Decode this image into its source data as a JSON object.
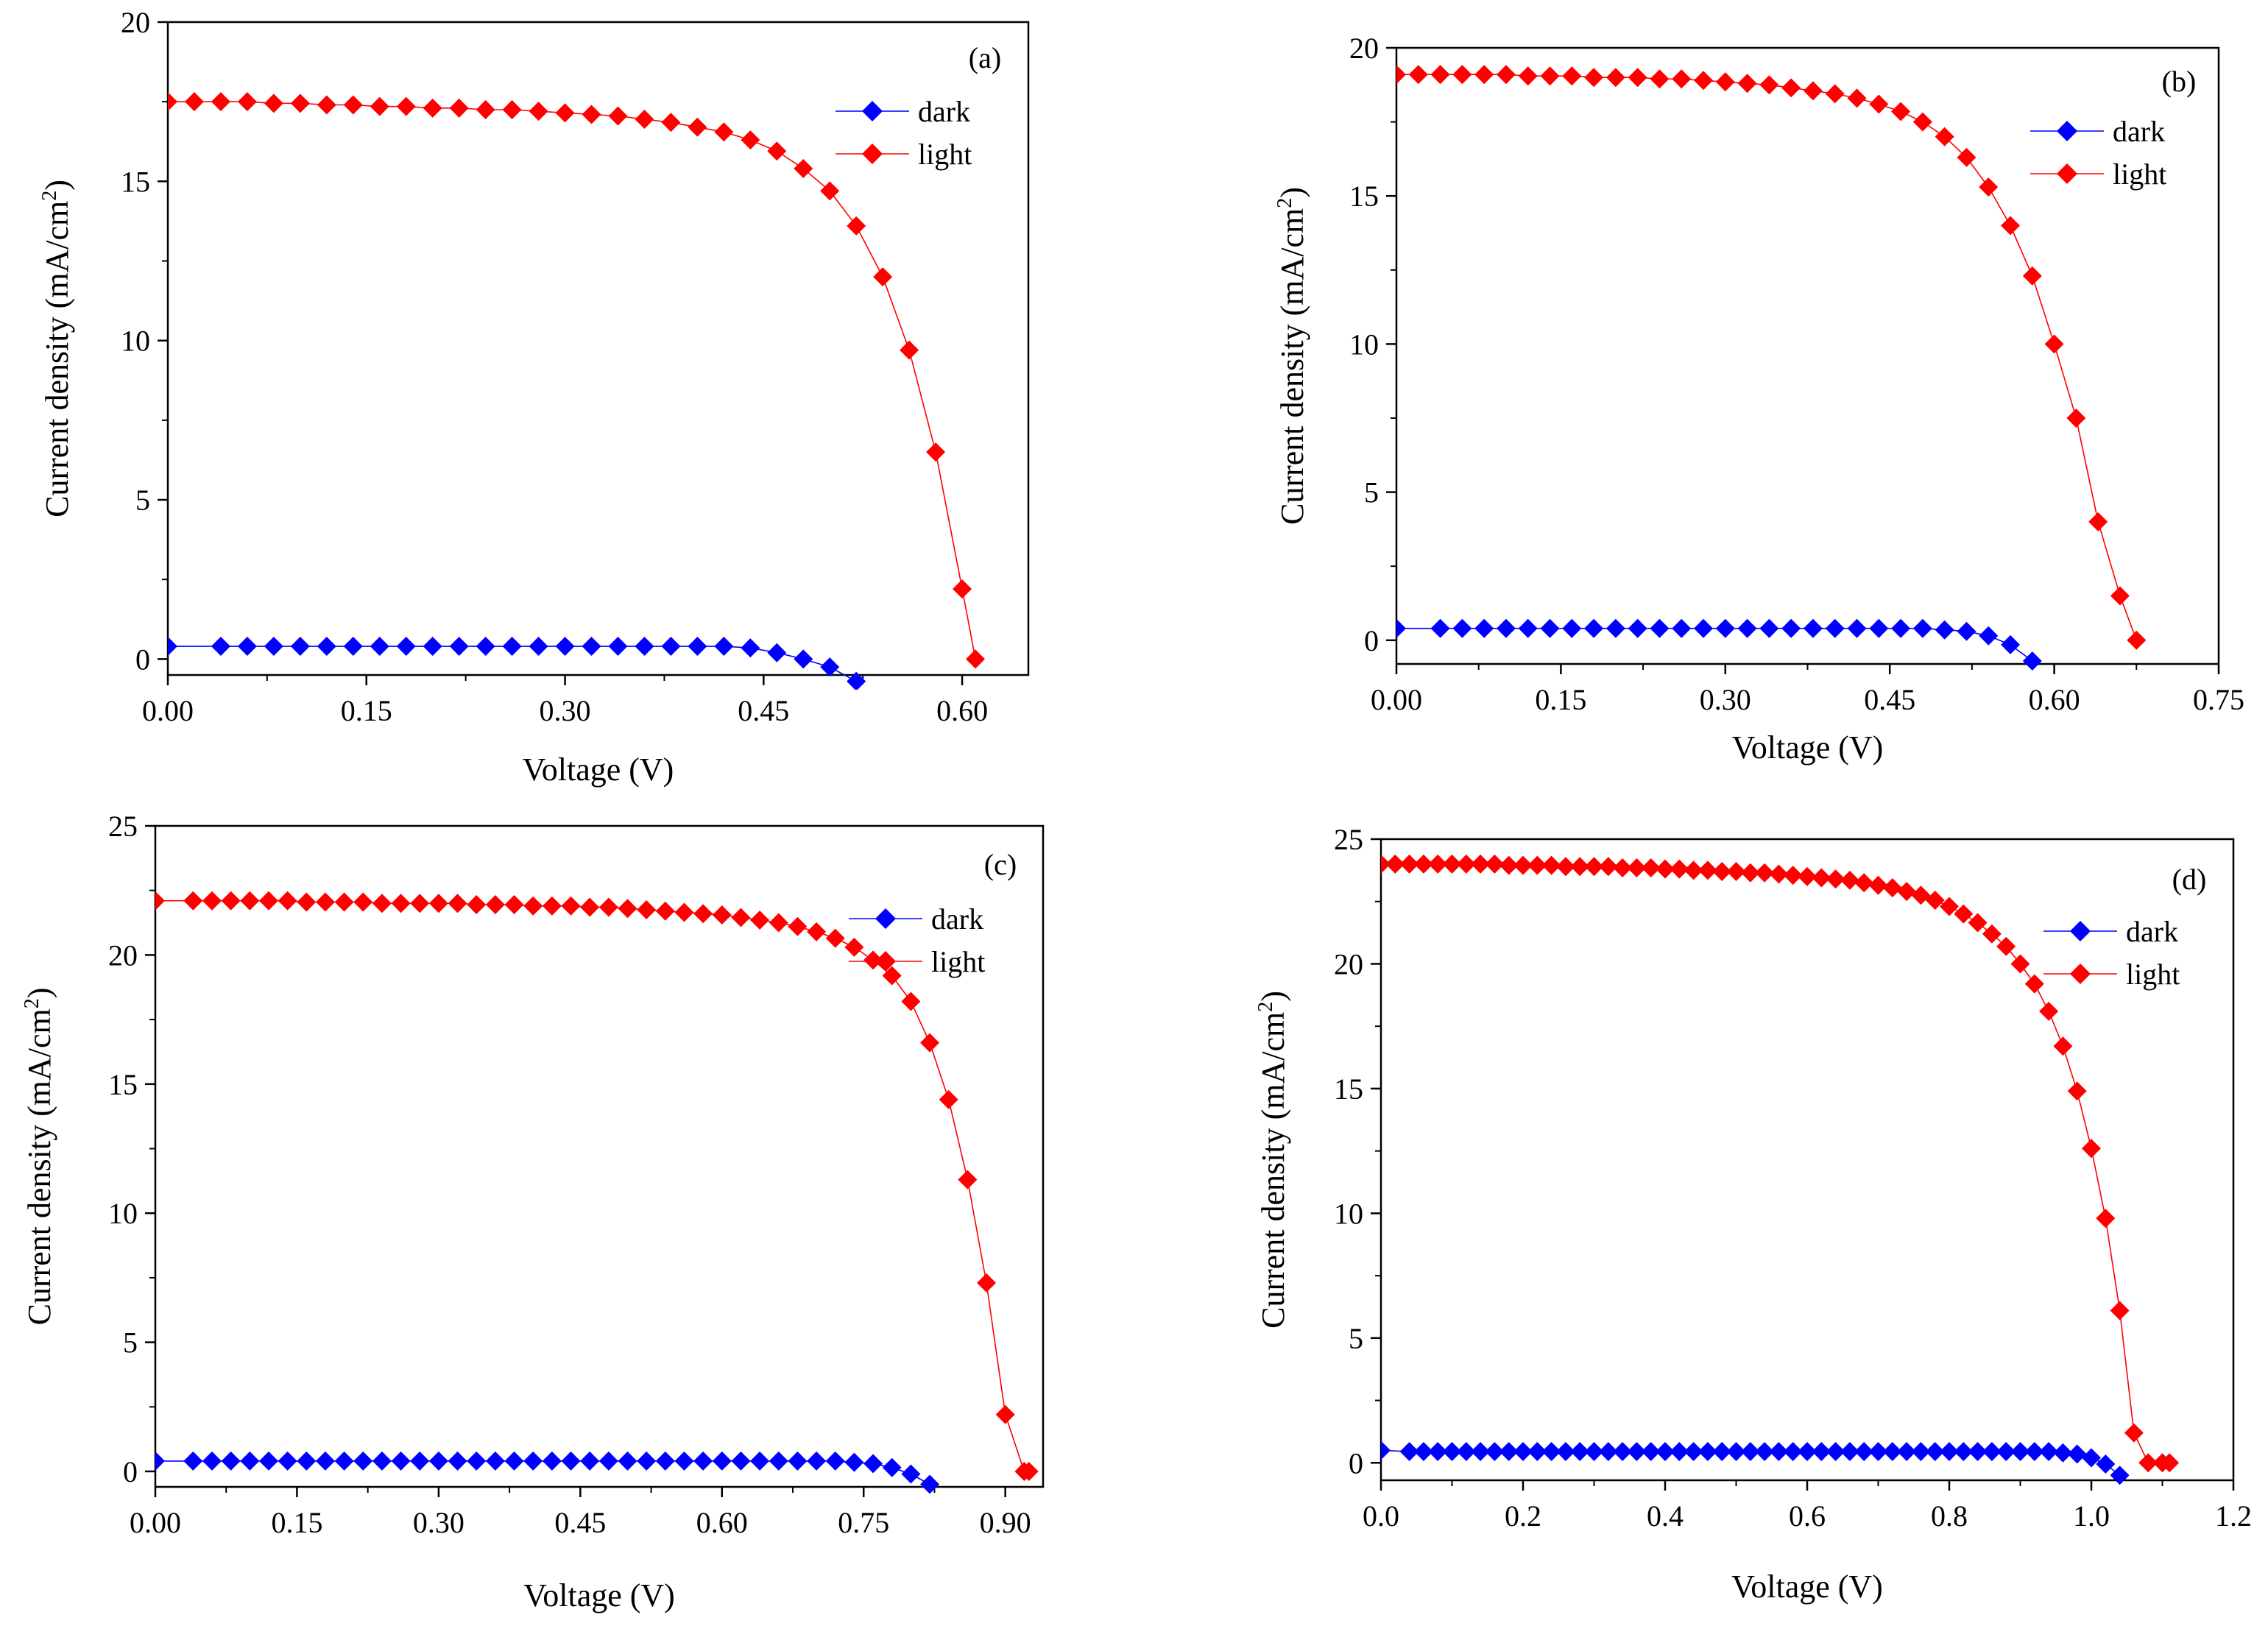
{
  "colors": {
    "dark": "#0000ff",
    "light": "#ff0000",
    "axis": "#000000"
  },
  "chart_data": [
    {
      "type": "line",
      "panel": "(a)",
      "xlabel": "Voltage (V)",
      "ylabel": "Current density (mA/cm²)",
      "ylabel_main": "Current density (mA/cm",
      "ylabel_sup": "2",
      "ylabel_close": ")",
      "xlim": [
        0,
        0.65
      ],
      "ylim": [
        -0.5,
        20
      ],
      "xticks": [
        0,
        0.15,
        0.3,
        0.45,
        0.6
      ],
      "xtick_labels": [
        "0.00",
        "0.15",
        "0.30",
        "0.45",
        "0.60"
      ],
      "yticks": [
        0,
        5,
        10,
        15,
        20
      ],
      "ytick_labels": [
        "0",
        "5",
        "10",
        "15",
        "20"
      ],
      "legend": [
        "dark",
        "light"
      ],
      "series": [
        {
          "name": "dark",
          "x": [
            0,
            0.04,
            0.06,
            0.08,
            0.1,
            0.12,
            0.14,
            0.16,
            0.18,
            0.2,
            0.22,
            0.24,
            0.26,
            0.28,
            0.3,
            0.32,
            0.34,
            0.36,
            0.38,
            0.4,
            0.42,
            0.44,
            0.46,
            0.48,
            0.5,
            0.52
          ],
          "y": [
            0.4,
            0.4,
            0.4,
            0.4,
            0.4,
            0.4,
            0.4,
            0.4,
            0.4,
            0.4,
            0.4,
            0.4,
            0.4,
            0.4,
            0.4,
            0.4,
            0.4,
            0.4,
            0.4,
            0.4,
            0.4,
            0.35,
            0.2,
            0,
            -0.25,
            -0.7
          ]
        },
        {
          "name": "light",
          "x": [
            0,
            0.02,
            0.04,
            0.06,
            0.08,
            0.1,
            0.12,
            0.14,
            0.16,
            0.18,
            0.2,
            0.22,
            0.24,
            0.26,
            0.28,
            0.3,
            0.32,
            0.34,
            0.36,
            0.38,
            0.4,
            0.42,
            0.44,
            0.46,
            0.48,
            0.5,
            0.52,
            0.54,
            0.56,
            0.58,
            0.6,
            0.61
          ],
          "y": [
            17.5,
            17.5,
            17.5,
            17.5,
            17.45,
            17.45,
            17.4,
            17.4,
            17.35,
            17.35,
            17.3,
            17.3,
            17.25,
            17.25,
            17.2,
            17.15,
            17.1,
            17.05,
            16.95,
            16.85,
            16.7,
            16.55,
            16.3,
            15.95,
            15.4,
            14.7,
            13.6,
            12.0,
            9.7,
            6.5,
            2.2,
            0
          ]
        }
      ]
    },
    {
      "type": "line",
      "panel": "(b)",
      "xlabel": "Voltage (V)",
      "ylabel": "Current density (mA/cm²)",
      "ylabel_main": "Current density (mA/cm",
      "ylabel_sup": "2",
      "ylabel_close": ")",
      "xlim": [
        0,
        0.75
      ],
      "ylim": [
        -0.8,
        20
      ],
      "xticks": [
        0,
        0.15,
        0.3,
        0.45,
        0.6,
        0.75
      ],
      "xtick_labels": [
        "0.00",
        "0.15",
        "0.30",
        "0.45",
        "0.60",
        "0.75"
      ],
      "yticks": [
        0,
        5,
        10,
        15,
        20
      ],
      "ytick_labels": [
        "0",
        "5",
        "10",
        "15",
        "20"
      ],
      "legend": [
        "dark",
        "light"
      ],
      "series": [
        {
          "name": "dark",
          "x": [
            0,
            0.04,
            0.06,
            0.08,
            0.1,
            0.12,
            0.14,
            0.16,
            0.18,
            0.2,
            0.22,
            0.24,
            0.26,
            0.28,
            0.3,
            0.32,
            0.34,
            0.36,
            0.38,
            0.4,
            0.42,
            0.44,
            0.46,
            0.48,
            0.5,
            0.52,
            0.54,
            0.56,
            0.58
          ],
          "y": [
            0.4,
            0.4,
            0.4,
            0.4,
            0.4,
            0.4,
            0.4,
            0.4,
            0.4,
            0.4,
            0.4,
            0.4,
            0.4,
            0.4,
            0.4,
            0.4,
            0.4,
            0.4,
            0.4,
            0.4,
            0.4,
            0.4,
            0.4,
            0.4,
            0.35,
            0.3,
            0.15,
            -0.15,
            -0.7
          ]
        },
        {
          "name": "light",
          "x": [
            0,
            0.02,
            0.04,
            0.06,
            0.08,
            0.1,
            0.12,
            0.14,
            0.16,
            0.18,
            0.2,
            0.22,
            0.24,
            0.26,
            0.28,
            0.3,
            0.32,
            0.34,
            0.36,
            0.38,
            0.4,
            0.42,
            0.44,
            0.46,
            0.48,
            0.5,
            0.52,
            0.54,
            0.56,
            0.58,
            0.6,
            0.62,
            0.64,
            0.66,
            0.675
          ],
          "y": [
            19.1,
            19.1,
            19.1,
            19.1,
            19.1,
            19.1,
            19.05,
            19.05,
            19.05,
            19.0,
            19.0,
            19.0,
            18.95,
            18.95,
            18.9,
            18.85,
            18.8,
            18.75,
            18.65,
            18.55,
            18.45,
            18.3,
            18.1,
            17.85,
            17.5,
            17.0,
            16.3,
            15.3,
            14.0,
            12.3,
            10.0,
            7.5,
            4.0,
            1.5,
            0
          ]
        }
      ]
    },
    {
      "type": "line",
      "panel": "(c)",
      "xlabel": "Voltage (V)",
      "ylabel": "Current density (mA/cm²)",
      "ylabel_main": "Current density (mA/cm",
      "ylabel_sup": "2",
      "ylabel_close": ")",
      "xlim": [
        0,
        0.94
      ],
      "ylim": [
        -0.6,
        25
      ],
      "xticks": [
        0,
        0.15,
        0.3,
        0.45,
        0.6,
        0.75,
        0.9
      ],
      "xtick_labels": [
        "0.00",
        "0.15",
        "0.30",
        "0.45",
        "0.60",
        "0.75",
        "0.90"
      ],
      "yticks": [
        0,
        5,
        10,
        15,
        20,
        25
      ],
      "ytick_labels": [
        "0",
        "5",
        "10",
        "15",
        "20",
        "25"
      ],
      "legend": [
        "dark",
        "light"
      ],
      "series": [
        {
          "name": "dark",
          "x": [
            0,
            0.04,
            0.06,
            0.08,
            0.1,
            0.12,
            0.14,
            0.16,
            0.18,
            0.2,
            0.22,
            0.24,
            0.26,
            0.28,
            0.3,
            0.32,
            0.34,
            0.36,
            0.38,
            0.4,
            0.42,
            0.44,
            0.46,
            0.48,
            0.5,
            0.52,
            0.54,
            0.56,
            0.58,
            0.6,
            0.62,
            0.64,
            0.66,
            0.68,
            0.7,
            0.72,
            0.74,
            0.76,
            0.78,
            0.8,
            0.82
          ],
          "y": [
            0.4,
            0.4,
            0.4,
            0.4,
            0.4,
            0.4,
            0.4,
            0.4,
            0.4,
            0.4,
            0.4,
            0.4,
            0.4,
            0.4,
            0.4,
            0.4,
            0.4,
            0.4,
            0.4,
            0.4,
            0.4,
            0.4,
            0.4,
            0.4,
            0.4,
            0.4,
            0.4,
            0.4,
            0.4,
            0.4,
            0.4,
            0.4,
            0.4,
            0.4,
            0.4,
            0.4,
            0.35,
            0.3,
            0.15,
            -0.1,
            -0.5
          ]
        },
        {
          "name": "light",
          "x": [
            0,
            0.04,
            0.06,
            0.08,
            0.1,
            0.12,
            0.14,
            0.16,
            0.18,
            0.2,
            0.22,
            0.24,
            0.26,
            0.28,
            0.3,
            0.32,
            0.34,
            0.36,
            0.38,
            0.4,
            0.42,
            0.44,
            0.46,
            0.48,
            0.5,
            0.52,
            0.54,
            0.56,
            0.58,
            0.6,
            0.62,
            0.64,
            0.66,
            0.68,
            0.7,
            0.72,
            0.74,
            0.76,
            0.78,
            0.8,
            0.82,
            0.84,
            0.86,
            0.88,
            0.9,
            0.92,
            0.925
          ],
          "y": [
            22.1,
            22.1,
            22.1,
            22.1,
            22.1,
            22.1,
            22.1,
            22.05,
            22.05,
            22.05,
            22.05,
            22.0,
            22.0,
            22.0,
            22.0,
            22.0,
            21.95,
            21.95,
            21.95,
            21.9,
            21.9,
            21.9,
            21.85,
            21.85,
            21.8,
            21.75,
            21.7,
            21.65,
            21.6,
            21.55,
            21.45,
            21.35,
            21.25,
            21.1,
            20.9,
            20.65,
            20.3,
            19.8,
            19.2,
            18.2,
            16.6,
            14.4,
            11.3,
            7.3,
            2.2,
            0,
            0
          ]
        }
      ]
    },
    {
      "type": "line",
      "panel": "(d)",
      "xlabel": "Voltage (V)",
      "ylabel": "Current density (mA/cm²)",
      "ylabel_main": "Current density (mA/cm",
      "ylabel_sup": "2",
      "ylabel_close": ")",
      "xlim": [
        0,
        1.2
      ],
      "ylim": [
        -0.7,
        25
      ],
      "xticks": [
        0,
        0.2,
        0.4,
        0.6,
        0.8,
        1.0,
        1.2
      ],
      "xtick_labels": [
        "0.0",
        "0.2",
        "0.4",
        "0.6",
        "0.8",
        "1.0",
        "1.2"
      ],
      "yticks": [
        0,
        5,
        10,
        15,
        20,
        25
      ],
      "ytick_labels": [
        "0",
        "5",
        "10",
        "15",
        "20",
        "25"
      ],
      "legend": [
        "dark",
        "light"
      ],
      "series": [
        {
          "name": "dark",
          "x": [
            0,
            0.04,
            0.06,
            0.08,
            0.1,
            0.12,
            0.14,
            0.16,
            0.18,
            0.2,
            0.22,
            0.24,
            0.26,
            0.28,
            0.3,
            0.32,
            0.34,
            0.36,
            0.38,
            0.4,
            0.42,
            0.44,
            0.46,
            0.48,
            0.5,
            0.52,
            0.54,
            0.56,
            0.58,
            0.6,
            0.62,
            0.64,
            0.66,
            0.68,
            0.7,
            0.72,
            0.74,
            0.76,
            0.78,
            0.8,
            0.82,
            0.84,
            0.86,
            0.88,
            0.9,
            0.92,
            0.94,
            0.96,
            0.98,
            1.0,
            1.02,
            1.04
          ],
          "y": [
            0.5,
            0.45,
            0.45,
            0.45,
            0.45,
            0.45,
            0.45,
            0.45,
            0.45,
            0.45,
            0.45,
            0.45,
            0.45,
            0.45,
            0.45,
            0.45,
            0.45,
            0.45,
            0.45,
            0.45,
            0.45,
            0.45,
            0.45,
            0.45,
            0.45,
            0.45,
            0.45,
            0.45,
            0.45,
            0.45,
            0.45,
            0.45,
            0.45,
            0.45,
            0.45,
            0.45,
            0.45,
            0.45,
            0.45,
            0.45,
            0.45,
            0.45,
            0.45,
            0.45,
            0.45,
            0.45,
            0.45,
            0.4,
            0.35,
            0.2,
            -0.05,
            -0.5
          ]
        },
        {
          "name": "light",
          "x": [
            0,
            0.02,
            0.04,
            0.06,
            0.08,
            0.1,
            0.12,
            0.14,
            0.16,
            0.18,
            0.2,
            0.22,
            0.24,
            0.26,
            0.28,
            0.3,
            0.32,
            0.34,
            0.36,
            0.38,
            0.4,
            0.42,
            0.44,
            0.46,
            0.48,
            0.5,
            0.52,
            0.54,
            0.56,
            0.58,
            0.6,
            0.62,
            0.64,
            0.66,
            0.68,
            0.7,
            0.72,
            0.74,
            0.76,
            0.78,
            0.8,
            0.82,
            0.84,
            0.86,
            0.88,
            0.9,
            0.92,
            0.94,
            0.96,
            0.98,
            1.0,
            1.02,
            1.04,
            1.06,
            1.08,
            1.1,
            1.11
          ],
          "y": [
            24.0,
            24.0,
            24.0,
            24.0,
            24.0,
            24.0,
            24.0,
            24.0,
            24.0,
            23.95,
            23.95,
            23.95,
            23.95,
            23.9,
            23.9,
            23.9,
            23.9,
            23.85,
            23.85,
            23.85,
            23.8,
            23.8,
            23.75,
            23.75,
            23.7,
            23.7,
            23.65,
            23.65,
            23.6,
            23.55,
            23.5,
            23.45,
            23.4,
            23.35,
            23.25,
            23.15,
            23.05,
            22.9,
            22.75,
            22.55,
            22.3,
            22.0,
            21.65,
            21.2,
            20.7,
            20.0,
            19.2,
            18.1,
            16.7,
            14.9,
            12.6,
            9.8,
            6.1,
            1.2,
            0,
            0,
            0
          ]
        }
      ]
    }
  ]
}
